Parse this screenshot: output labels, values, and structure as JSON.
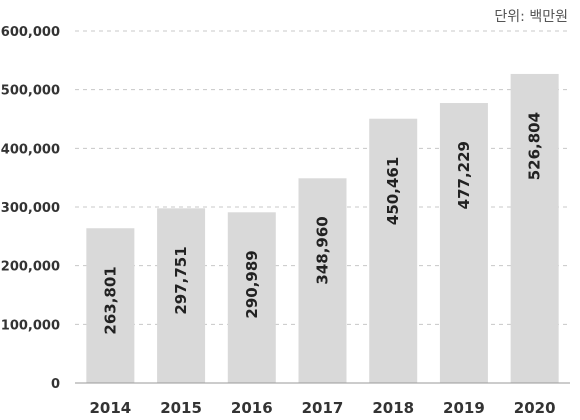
{
  "unit_label": "단위: 백만원",
  "colors": {
    "bar": "#d9d9d9",
    "text": "#222222"
  },
  "chart_data": {
    "type": "bar",
    "categories": [
      "2014",
      "2015",
      "2016",
      "2017",
      "2018",
      "2019",
      "2020"
    ],
    "values": [
      263801,
      297751,
      290989,
      348960,
      450461,
      477229,
      526804
    ],
    "value_labels": [
      "263,801",
      "297,751",
      "290,989",
      "348,960",
      "450,461",
      "477,229",
      "526,804"
    ],
    "yticks": [
      0,
      100000,
      200000,
      300000,
      400000,
      500000,
      600000
    ],
    "ytick_labels": [
      "0",
      "100,000",
      "200,000",
      "300,000",
      "400,000",
      "500,000",
      "600,000"
    ],
    "ylim": [
      0,
      600000
    ],
    "grid": true,
    "grid_style": "dashed",
    "data_label_orientation": "vertical"
  }
}
